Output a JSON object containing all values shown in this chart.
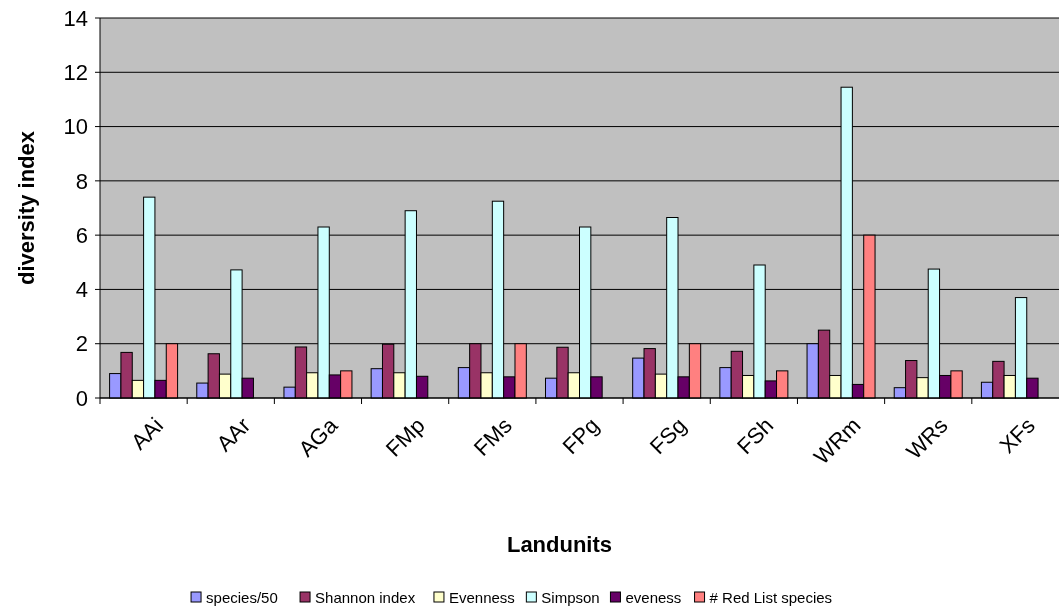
{
  "chart_data": {
    "type": "bar",
    "xlabel": "Landunits",
    "ylabel": "diversity index",
    "categories": [
      "AAi",
      "AAr",
      "AGa",
      "FMp",
      "FMs",
      "FPg",
      "FSg",
      "FSh",
      "WRm",
      "WRs",
      "XFs"
    ],
    "series": [
      {
        "name": "species/50",
        "color": "#9999ff",
        "values": [
          0.9,
          0.55,
          0.4,
          1.08,
          1.12,
          0.73,
          1.47,
          1.12,
          2.0,
          0.38,
          0.58
        ]
      },
      {
        "name": "Shannon index",
        "color": "#993366",
        "values": [
          1.68,
          1.63,
          1.88,
          1.98,
          2.0,
          1.87,
          1.82,
          1.72,
          2.5,
          1.38,
          1.35
        ]
      },
      {
        "name": "Evenness",
        "color": "#ffffcc",
        "values": [
          0.65,
          0.88,
          0.93,
          0.93,
          0.93,
          0.93,
          0.88,
          0.83,
          0.83,
          0.75,
          0.83
        ]
      },
      {
        "name": "Simpson",
        "color": "#ccffff",
        "values": [
          7.4,
          4.72,
          6.3,
          6.9,
          7.25,
          6.3,
          6.65,
          4.9,
          11.45,
          4.75,
          3.7
        ]
      },
      {
        "name": "eveness",
        "color": "#660066",
        "values": [
          0.65,
          0.73,
          0.85,
          0.8,
          0.78,
          0.78,
          0.78,
          0.63,
          0.5,
          0.83,
          0.73
        ]
      },
      {
        "name": "# Red List species",
        "color": "#ff8080",
        "values": [
          2,
          null,
          1,
          null,
          2,
          null,
          2,
          1,
          6,
          1,
          null
        ]
      }
    ],
    "ylim": [
      0,
      14
    ],
    "yticks": [
      0,
      2,
      4,
      6,
      8,
      10,
      12,
      14
    ],
    "grid": "y",
    "legend": "bottom"
  }
}
